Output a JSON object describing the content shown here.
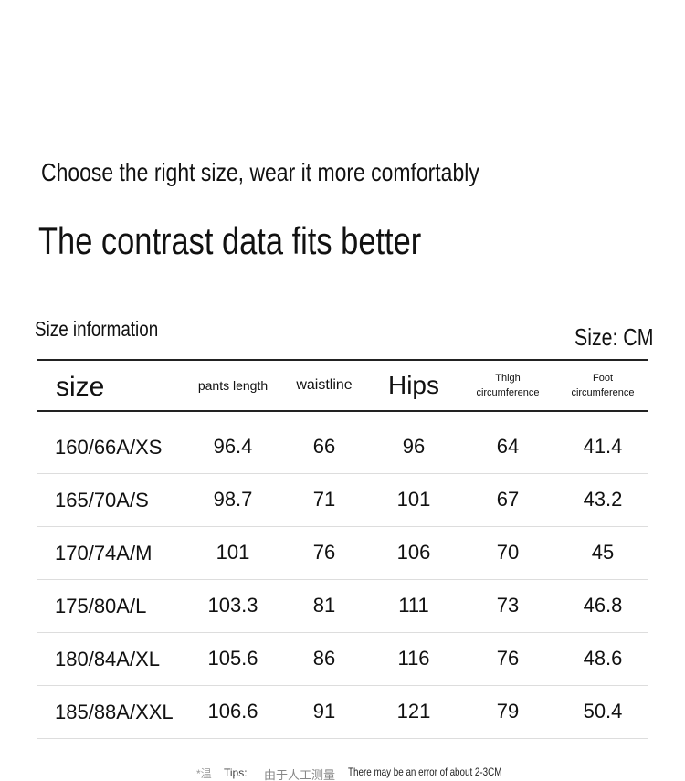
{
  "header": {
    "subtitle": "Choose the right size, wear it more comfortably",
    "title": "The contrast data fits better"
  },
  "section": {
    "label": "Size information",
    "unit": "Size: CM"
  },
  "table": {
    "columns": [
      "size",
      "pants length",
      "waistline",
      "Hips",
      "Thigh circumference",
      "Foot circumference"
    ],
    "rows": [
      [
        "160/66A/XS",
        96.4,
        66,
        96,
        64,
        41.4
      ],
      [
        "165/70A/S",
        98.7,
        71,
        101,
        67,
        43.2
      ],
      [
        "170/74A/M",
        101,
        76,
        106,
        70,
        45
      ],
      [
        "175/80A/L",
        103.3,
        81,
        111,
        73,
        46.8
      ],
      [
        "180/84A/XL",
        105.6,
        86,
        116,
        76,
        48.6
      ],
      [
        "185/88A/XXL",
        106.6,
        91,
        121,
        79,
        50.4
      ]
    ]
  },
  "footer": {
    "mark": "*温",
    "tips": "Tips:",
    "note_cn": "由于人工测量",
    "note": "There may be an error of about 2-3CM"
  }
}
